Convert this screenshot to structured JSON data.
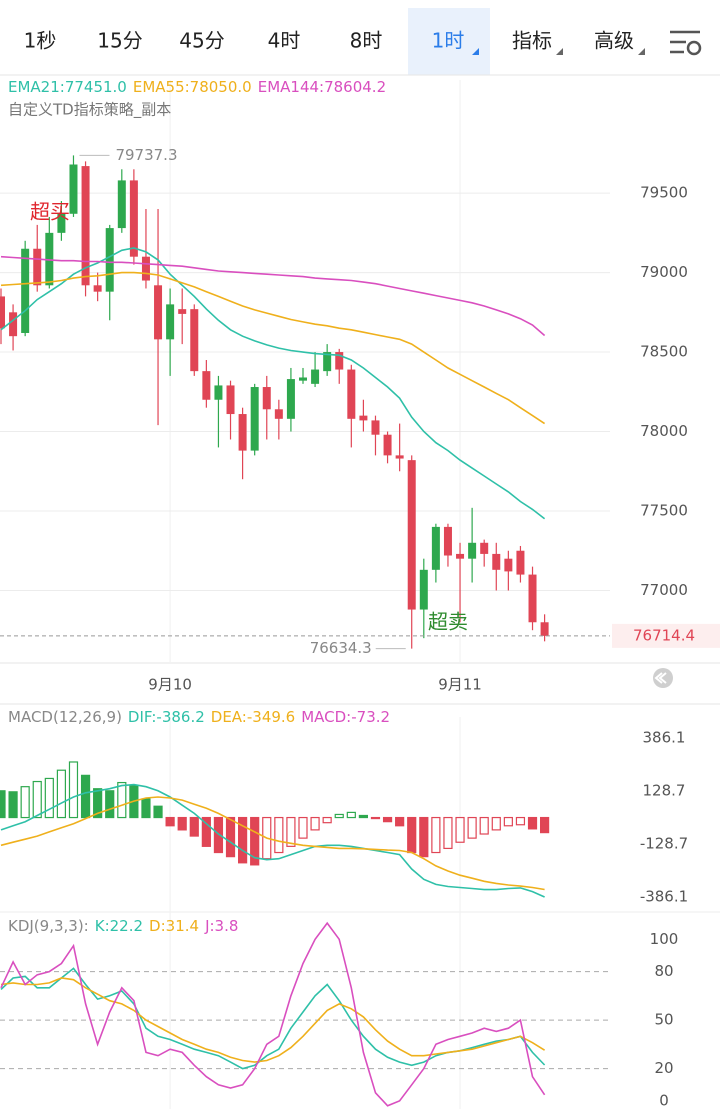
{
  "toolbar": {
    "tabs": [
      "1秒",
      "15分",
      "45分",
      "4时",
      "8时",
      "1时",
      "指标",
      "高级"
    ],
    "active": 5
  },
  "chart_data": [
    {
      "type": "candlestick",
      "subtitle": "自定义TD指标策略_副本",
      "categories": [
        null,
        null,
        null,
        null,
        null,
        null,
        null,
        null,
        null,
        null,
        null,
        null,
        null,
        null,
        "9月10",
        null,
        null,
        null,
        null,
        null,
        null,
        null,
        null,
        null,
        null,
        null,
        null,
        null,
        null,
        null,
        null,
        null,
        null,
        null,
        null,
        null,
        null,
        null,
        "9月11",
        null,
        null,
        null,
        null,
        null,
        null,
        null
      ],
      "open": [
        78850,
        78750,
        78620,
        79150,
        78920,
        79250,
        79370,
        79670,
        78920,
        78880,
        79280,
        79580,
        79100,
        78920,
        78580,
        78770,
        78770,
        78380,
        78200,
        78290,
        78110,
        77880,
        78280,
        78140,
        78080,
        78320,
        78300,
        78380,
        78500,
        78390,
        78100,
        78070,
        77980,
        77850,
        77820,
        76880,
        77130,
        77400,
        77230,
        77200,
        77300,
        77230,
        77200,
        77250,
        77100,
        76800
      ],
      "high": [
        78900,
        78800,
        79200,
        79300,
        79350,
        79450,
        79737.3,
        79700,
        79000,
        79300,
        79650,
        79650,
        79400,
        79400,
        78900,
        78900,
        78800,
        78450,
        78350,
        78320,
        78150,
        78300,
        78350,
        78200,
        78400,
        78400,
        78500,
        78550,
        78520,
        78420,
        78200,
        78100,
        78000,
        78050,
        77850,
        77200,
        77420,
        77420,
        77300,
        77520,
        77320,
        77300,
        77250,
        77280,
        77150,
        76850
      ],
      "low": [
        78550,
        78510,
        78600,
        78880,
        78900,
        79200,
        79350,
        78850,
        78820,
        78700,
        79250,
        79050,
        78900,
        78040,
        78350,
        78550,
        78350,
        78150,
        77900,
        77950,
        77700,
        77850,
        77950,
        77950,
        78000,
        78300,
        78280,
        78350,
        78300,
        77900,
        78000,
        77850,
        77800,
        77750,
        76634.3,
        76700,
        77050,
        77150,
        76800,
        77050,
        77150,
        77000,
        77000,
        77050,
        76750,
        76680
      ],
      "close": [
        78650,
        78600,
        79150,
        78920,
        79250,
        79370,
        79680,
        78920,
        78880,
        79280,
        79580,
        79100,
        78950,
        78580,
        78800,
        78740,
        78380,
        78200,
        78290,
        78110,
        77880,
        78280,
        78140,
        78080,
        78330,
        78340,
        78390,
        78500,
        78390,
        78080,
        78070,
        77980,
        77850,
        77830,
        76880,
        77130,
        77400,
        77220,
        77200,
        77300,
        77230,
        77130,
        77120,
        77100,
        76800,
        76714.4
      ],
      "up_color": "#2ea84e",
      "down_color": "#e04555",
      "series": [
        {
          "name": "EMA21:77451.0",
          "color": "#2fc0a8",
          "values": [
            78640,
            78700,
            78760,
            78830,
            78880,
            78930,
            78990,
            79030,
            79060,
            79100,
            79140,
            79155,
            79130,
            79080,
            78990,
            78920,
            78850,
            78770,
            78700,
            78640,
            78600,
            78570,
            78545,
            78525,
            78510,
            78500,
            78490,
            78485,
            78480,
            78450,
            78400,
            78340,
            78280,
            78210,
            78090,
            78000,
            77930,
            77880,
            77820,
            77770,
            77720,
            77670,
            77620,
            77560,
            77510,
            77451.0
          ]
        },
        {
          "name": "EMA55:78050.0",
          "color": "#efb01c",
          "values": [
            78920,
            78925,
            78930,
            78935,
            78940,
            78950,
            78965,
            78975,
            78980,
            78990,
            79000,
            79000,
            78995,
            78985,
            78960,
            78935,
            78910,
            78880,
            78850,
            78820,
            78790,
            78765,
            78745,
            78725,
            78705,
            78690,
            78675,
            78665,
            78650,
            78640,
            78625,
            78610,
            78595,
            78580,
            78550,
            78500,
            78450,
            78400,
            78360,
            78320,
            78280,
            78240,
            78200,
            78150,
            78100,
            78050.0
          ]
        },
        {
          "name": "EMA144:78604.2",
          "color": "#d94fbf",
          "values": [
            79100,
            79095,
            79090,
            79085,
            79080,
            79075,
            79075,
            79070,
            79070,
            79065,
            79065,
            79060,
            79055,
            79050,
            79045,
            79040,
            79030,
            79020,
            79010,
            79005,
            79000,
            78995,
            78990,
            78985,
            78980,
            78975,
            78965,
            78960,
            78955,
            78950,
            78940,
            78930,
            78915,
            78900,
            78885,
            78870,
            78855,
            78840,
            78825,
            78810,
            78790,
            78765,
            78740,
            78710,
            78670,
            78604.2
          ]
        }
      ],
      "ylim": [
        76550,
        79960
      ],
      "yticks": [
        77000,
        77500,
        78000,
        78500,
        79000,
        79500
      ],
      "grid": true,
      "high_marker": 79737.3,
      "low_marker": 76634.3,
      "last_price": 76714.4,
      "annotations": [
        {
          "text": "超买",
          "color": "#e0262e"
        },
        {
          "text": "超卖",
          "color": "#2e8b2e"
        }
      ]
    },
    {
      "type": "bar",
      "title": "MACD(12,26,9)",
      "series": [
        {
          "name": "DIF:-386.2",
          "color": "#2fc0a8",
          "values": [
            -60,
            -40,
            -20,
            10,
            40,
            70,
            100,
            120,
            130,
            140,
            155,
            160,
            150,
            130,
            100,
            60,
            20,
            -30,
            -80,
            -120,
            -160,
            -195,
            -205,
            -200,
            -180,
            -160,
            -140,
            -135,
            -135,
            -140,
            -150,
            -160,
            -170,
            -180,
            -250,
            -300,
            -325,
            -335,
            -340,
            -345,
            -350,
            -350,
            -345,
            -342,
            -360,
            -386.2
          ]
        },
        {
          "name": "DEA:-349.6",
          "color": "#efb01c",
          "values": [
            -135,
            -120,
            -105,
            -90,
            -70,
            -50,
            -30,
            -5,
            20,
            40,
            60,
            80,
            95,
            100,
            95,
            85,
            65,
            45,
            20,
            -10,
            -40,
            -70,
            -100,
            -115,
            -125,
            -135,
            -140,
            -145,
            -150,
            -150,
            -152,
            -155,
            -158,
            -160,
            -170,
            -200,
            -235,
            -260,
            -280,
            -295,
            -310,
            -320,
            -328,
            -333,
            -340,
            -349.6
          ]
        },
        {
          "name": "MACD:-73.2",
          "color": "#d94fbf",
          "kind": "bar",
          "up_color": "#2ea84e",
          "down_color": "#e04555",
          "values": [
            130,
            125,
            150,
            175,
            190,
            230,
            270,
            205,
            140,
            130,
            170,
            155,
            90,
            55,
            -40,
            -60,
            -90,
            -140,
            -170,
            -190,
            -220,
            -230,
            -200,
            -170,
            -140,
            -100,
            -60,
            -25,
            15,
            25,
            10,
            -5,
            -20,
            -40,
            -170,
            -190,
            -170,
            -150,
            -120,
            -100,
            -80,
            -60,
            -40,
            -35,
            -55,
            -73.2
          ]
        }
      ],
      "ylim": [
        -425,
        440
      ],
      "yticks": [
        -386.1,
        -128.7,
        128.7,
        386.1
      ],
      "grid": false
    },
    {
      "type": "line",
      "title": "KDJ(9,3,3):",
      "series": [
        {
          "name": "K:22.2",
          "color": "#2fc0a8",
          "values": [
            69,
            76,
            77,
            70,
            70,
            76,
            82,
            72,
            63,
            65,
            68,
            60,
            45,
            40,
            38,
            35,
            32,
            30,
            28,
            24,
            20,
            22,
            28,
            32,
            45,
            55,
            65,
            72,
            62,
            50,
            40,
            32,
            27,
            24,
            22,
            24,
            28,
            30,
            31,
            33,
            35,
            37,
            38,
            40,
            30,
            22.2
          ]
        },
        {
          "name": "D:31.4",
          "color": "#efb01c",
          "values": [
            72,
            73,
            72,
            72,
            73,
            76,
            75,
            70,
            66,
            62,
            60,
            56,
            50,
            46,
            42,
            38,
            35,
            32,
            30,
            27,
            25,
            24,
            25,
            28,
            33,
            40,
            48,
            56,
            60,
            57,
            52,
            44,
            37,
            32,
            28,
            28,
            29,
            30,
            31,
            32,
            34,
            36,
            38,
            40,
            36,
            31.4
          ]
        },
        {
          "name": "J:3.8",
          "color": "#d94fbf",
          "values": [
            70,
            86,
            72,
            78,
            80,
            85,
            96,
            60,
            35,
            55,
            70,
            62,
            30,
            28,
            32,
            30,
            22,
            15,
            10,
            8,
            10,
            20,
            35,
            40,
            65,
            85,
            100,
            110,
            100,
            70,
            30,
            5,
            -3,
            0,
            10,
            20,
            35,
            38,
            40,
            42,
            45,
            43,
            45,
            50,
            15,
            3.8
          ]
        }
      ],
      "ylim": [
        -5,
        115
      ],
      "yticks": [
        0,
        20,
        50,
        80,
        100
      ],
      "hlines": [
        80,
        50,
        20
      ]
    }
  ]
}
